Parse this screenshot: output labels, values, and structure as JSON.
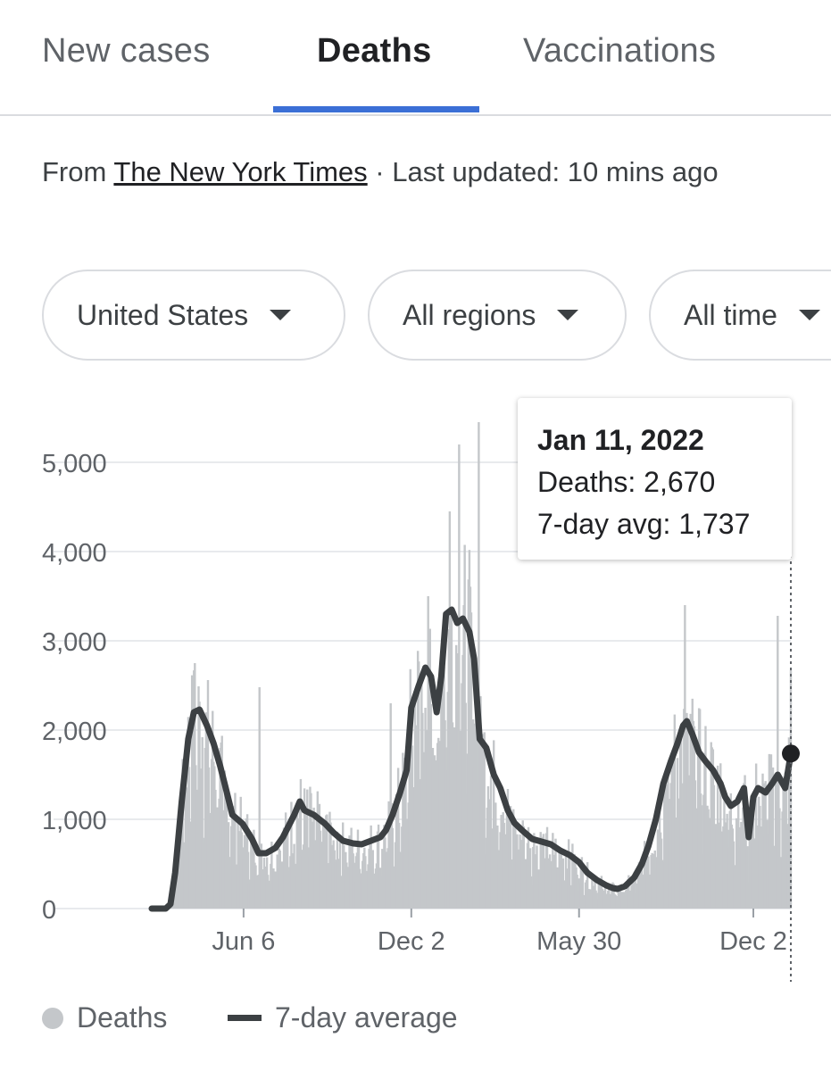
{
  "tabs": [
    {
      "label": "New cases",
      "active": false
    },
    {
      "label": "Deaths",
      "active": true
    },
    {
      "label": "Vaccinations",
      "active": false
    }
  ],
  "source": {
    "prefix": "From ",
    "link": "The New York Times",
    "suffix": " · Last updated: 10 mins ago"
  },
  "filters": {
    "location": "United States",
    "region": "All regions",
    "time": "All time"
  },
  "tooltip": {
    "date": "Jan 11, 2022",
    "deaths": "Deaths: 2,670",
    "avg": "7-day avg: 1,737"
  },
  "legend": {
    "bars": "Deaths",
    "line": "7-day average"
  },
  "colors": {
    "bars": "#c4c7ca",
    "line": "#3c4043",
    "tab_accent": "#3b6fd6",
    "grid": "#e8eaed"
  },
  "chart_data": {
    "type": "bar",
    "y_ticks": [
      "0",
      "1,000",
      "2,000",
      "3,000",
      "4,000",
      "5,000"
    ],
    "ylim": [
      0,
      5000
    ],
    "x_ticks": [
      {
        "label": "Jun 6",
        "date": "2020-06-06"
      },
      {
        "label": "Dec 2",
        "date": "2020-12-02"
      },
      {
        "label": "May 30",
        "date": "2021-05-30"
      },
      {
        "label": "Dec 2",
        "date": "2021-12-02"
      }
    ],
    "x_range": [
      "2020-02-29",
      "2022-01-11"
    ],
    "series": [
      {
        "name": "Deaths",
        "type": "bar",
        "approx_values": [
          {
            "date": "2020-04-15",
            "value": 2750
          },
          {
            "date": "2020-06-23",
            "value": 2480
          },
          {
            "date": "2020-11-10",
            "value": 2300
          },
          {
            "date": "2020-12-20",
            "value": 3500
          },
          {
            "date": "2021-01-12",
            "value": 4450
          },
          {
            "date": "2021-01-22",
            "value": 5200
          },
          {
            "date": "2021-02-12",
            "value": 5450
          },
          {
            "date": "2021-09-20",
            "value": 3400
          },
          {
            "date": "2021-12-28",
            "value": 3280
          },
          {
            "date": "2022-01-11",
            "value": 2670
          }
        ]
      },
      {
        "name": "7-day average",
        "type": "line",
        "points": [
          [
            "2020-02-29",
            0
          ],
          [
            "2020-03-15",
            0
          ],
          [
            "2020-03-20",
            50
          ],
          [
            "2020-03-25",
            400
          ],
          [
            "2020-04-01",
            1200
          ],
          [
            "2020-04-08",
            1900
          ],
          [
            "2020-04-14",
            2200
          ],
          [
            "2020-04-20",
            2230
          ],
          [
            "2020-04-28",
            2050
          ],
          [
            "2020-05-05",
            1850
          ],
          [
            "2020-05-12",
            1600
          ],
          [
            "2020-05-18",
            1350
          ],
          [
            "2020-05-25",
            1050
          ],
          [
            "2020-06-05",
            950
          ],
          [
            "2020-06-15",
            780
          ],
          [
            "2020-06-22",
            620
          ],
          [
            "2020-06-30",
            620
          ],
          [
            "2020-07-10",
            680
          ],
          [
            "2020-07-18",
            800
          ],
          [
            "2020-07-30",
            1050
          ],
          [
            "2020-08-05",
            1200
          ],
          [
            "2020-08-10",
            1100
          ],
          [
            "2020-08-20",
            1050
          ],
          [
            "2020-09-01",
            950
          ],
          [
            "2020-09-10",
            850
          ],
          [
            "2020-09-20",
            760
          ],
          [
            "2020-10-01",
            730
          ],
          [
            "2020-10-10",
            720
          ],
          [
            "2020-10-20",
            760
          ],
          [
            "2020-10-30",
            800
          ],
          [
            "2020-11-05",
            880
          ],
          [
            "2020-11-12",
            1050
          ],
          [
            "2020-11-20",
            1300
          ],
          [
            "2020-11-27",
            1550
          ],
          [
            "2020-12-02",
            2250
          ],
          [
            "2020-12-10",
            2500
          ],
          [
            "2020-12-17",
            2700
          ],
          [
            "2020-12-23",
            2600
          ],
          [
            "2020-12-29",
            2200
          ],
          [
            "2021-01-03",
            2600
          ],
          [
            "2021-01-08",
            3300
          ],
          [
            "2021-01-14",
            3350
          ],
          [
            "2021-01-20",
            3200
          ],
          [
            "2021-01-26",
            3250
          ],
          [
            "2021-02-02",
            3100
          ],
          [
            "2021-02-07",
            2800
          ],
          [
            "2021-02-13",
            1900
          ],
          [
            "2021-02-20",
            1800
          ],
          [
            "2021-02-28",
            1500
          ],
          [
            "2021-03-07",
            1350
          ],
          [
            "2021-03-15",
            1100
          ],
          [
            "2021-03-22",
            960
          ],
          [
            "2021-03-31",
            870
          ],
          [
            "2021-04-10",
            780
          ],
          [
            "2021-04-20",
            750
          ],
          [
            "2021-04-30",
            720
          ],
          [
            "2021-05-10",
            650
          ],
          [
            "2021-05-20",
            600
          ],
          [
            "2021-05-30",
            520
          ],
          [
            "2021-06-08",
            400
          ],
          [
            "2021-06-18",
            320
          ],
          [
            "2021-06-28",
            260
          ],
          [
            "2021-07-05",
            230
          ],
          [
            "2021-07-10",
            220
          ],
          [
            "2021-07-18",
            250
          ],
          [
            "2021-07-28",
            350
          ],
          [
            "2021-08-05",
            500
          ],
          [
            "2021-08-12",
            700
          ],
          [
            "2021-08-20",
            1000
          ],
          [
            "2021-08-28",
            1400
          ],
          [
            "2021-09-05",
            1650
          ],
          [
            "2021-09-12",
            1850
          ],
          [
            "2021-09-18",
            2050
          ],
          [
            "2021-09-22",
            2100
          ],
          [
            "2021-09-28",
            1950
          ],
          [
            "2021-10-05",
            1750
          ],
          [
            "2021-10-12",
            1650
          ],
          [
            "2021-10-20",
            1550
          ],
          [
            "2021-10-28",
            1400
          ],
          [
            "2021-11-02",
            1250
          ],
          [
            "2021-11-08",
            1150
          ],
          [
            "2021-11-15",
            1200
          ],
          [
            "2021-11-22",
            1350
          ],
          [
            "2021-11-27",
            800
          ],
          [
            "2021-12-02",
            1250
          ],
          [
            "2021-12-07",
            1350
          ],
          [
            "2021-12-15",
            1300
          ],
          [
            "2021-12-22",
            1400
          ],
          [
            "2021-12-28",
            1500
          ],
          [
            "2022-01-05",
            1350
          ],
          [
            "2022-01-11",
            1737
          ]
        ]
      }
    ]
  }
}
